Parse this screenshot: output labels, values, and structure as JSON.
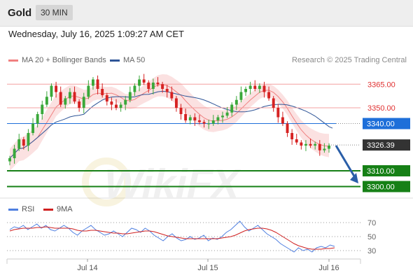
{
  "header": {
    "symbol": "Gold",
    "timeframe": "30 MIN",
    "datetime": "Wednesday, July 16, 2025 1:09:27 AM CET"
  },
  "legend": {
    "ma20": {
      "label": "MA 20 + Bollinger Bands",
      "color": "#f08080"
    },
    "ma50": {
      "label": "MA 50",
      "color": "#2f5597"
    }
  },
  "copyright": "Research © 2025 Trading Central",
  "watermark": "WikiFX",
  "chart_data": [
    {
      "type": "candlestick",
      "ylim": [
        3294,
        3374
      ],
      "x_ticks": [
        "Jul 14",
        "Jul 15",
        "Jul 16"
      ],
      "grid": false,
      "price_path": [
        3318,
        3324,
        3330,
        3326,
        3334,
        3340,
        3346,
        3352,
        3357,
        3364,
        3360,
        3352,
        3356,
        3360,
        3354,
        3350,
        3357,
        3364,
        3368,
        3362,
        3358,
        3354,
        3352,
        3350,
        3352,
        3355,
        3360,
        3364,
        3368,
        3366,
        3362,
        3366,
        3365,
        3362,
        3360,
        3356,
        3350,
        3346,
        3342,
        3344,
        3342,
        3341,
        3340,
        3340,
        3342,
        3344,
        3345,
        3347,
        3352,
        3355,
        3360,
        3362,
        3364,
        3362,
        3364,
        3360,
        3356,
        3350,
        3344,
        3340,
        3334,
        3330,
        3328,
        3326,
        3327,
        3326,
        3327,
        3323,
        3324,
        3326
      ],
      "levels": [
        {
          "value": 3365.0,
          "label": "3365.00",
          "kind": "resistance",
          "color": "#f4a0a0"
        },
        {
          "value": 3350.0,
          "label": "3350.00",
          "kind": "resistance",
          "color": "#f4a0a0"
        },
        {
          "value": 3340.0,
          "label": "3340.00",
          "kind": "pivot",
          "color": "#1e6fd9"
        },
        {
          "value": 3326.39,
          "label": "3326.39",
          "kind": "last",
          "color": "#333333"
        },
        {
          "value": 3310.0,
          "label": "3310.00",
          "kind": "support",
          "color": "#168016"
        },
        {
          "value": 3300.0,
          "label": "3300.00",
          "kind": "support",
          "color": "#168016"
        }
      ],
      "forecast_arrow": {
        "from": 3326,
        "to": 3302,
        "color": "#2a5ea8"
      },
      "series": [
        {
          "name": "MA 20 + Bollinger Bands",
          "color": "#f08080"
        },
        {
          "name": "MA 50",
          "color": "#2f5597"
        }
      ]
    },
    {
      "type": "line",
      "ylim": [
        20,
        80
      ],
      "y_ticks": [
        70,
        50,
        30
      ],
      "series": [
        {
          "name": "RSI",
          "color": "#4f7fe0",
          "values": [
            60,
            64,
            62,
            66,
            60,
            64,
            68,
            62,
            66,
            60,
            58,
            62,
            66,
            62,
            56,
            52,
            58,
            62,
            66,
            60,
            56,
            52,
            54,
            58,
            54,
            50,
            56,
            62,
            60,
            56,
            62,
            58,
            52,
            48,
            44,
            50,
            54,
            48,
            44,
            46,
            50,
            46,
            48,
            52,
            44,
            48,
            46,
            50,
            56,
            60,
            66,
            72,
            64,
            58,
            62,
            66,
            60,
            54,
            50,
            46,
            40,
            36,
            32,
            28,
            34,
            30,
            32,
            28,
            34,
            36,
            34,
            38,
            36
          ]
        },
        {
          "name": "9MA",
          "color": "#d02020",
          "values": [
            58,
            60,
            61,
            62,
            62,
            62,
            63,
            63,
            64,
            63,
            62,
            62,
            62,
            62,
            61,
            59,
            58,
            58,
            59,
            59,
            58,
            57,
            56,
            55,
            55,
            54,
            54,
            55,
            56,
            57,
            58,
            58,
            57,
            55,
            53,
            51,
            50,
            49,
            48,
            47,
            47,
            47,
            47,
            47,
            47,
            47,
            47,
            48,
            49,
            50,
            52,
            55,
            58,
            60,
            61,
            62,
            62,
            61,
            59,
            56,
            52,
            48,
            44,
            40,
            37,
            35,
            33,
            32,
            32,
            32,
            33,
            33,
            34
          ]
        }
      ]
    }
  ]
}
